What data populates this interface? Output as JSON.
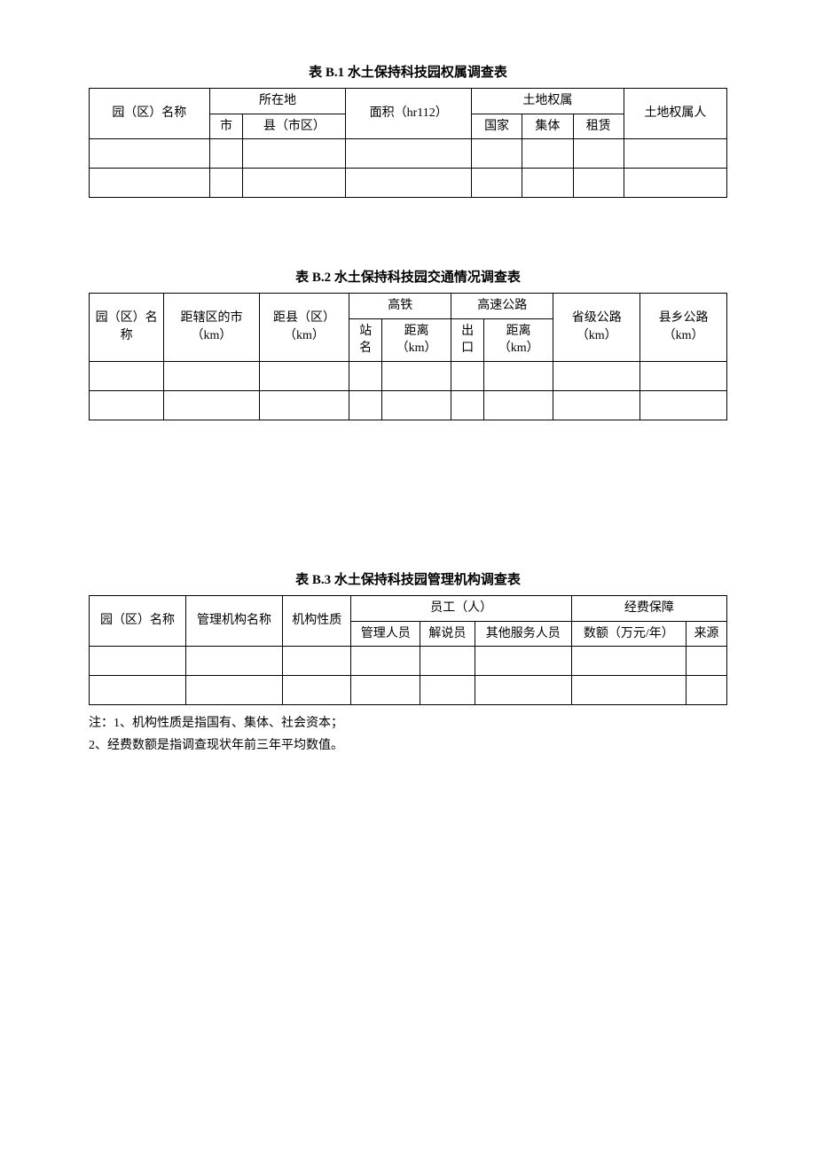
{
  "tableB1": {
    "title": "表 B.1 水土保持科技园权属调查表",
    "headers": {
      "parkName": "园（区）名称",
      "location": "所在地",
      "city": "市",
      "county": "县（市区）",
      "area": "面积（hr112）",
      "landOwnership": "土地权属",
      "national": "国家",
      "collective": "集体",
      "lease": "租赁",
      "owner": "土地权属人"
    },
    "rows": [
      [
        "",
        "",
        "",
        "",
        "",
        "",
        "",
        ""
      ],
      [
        "",
        "",
        "",
        "",
        "",
        "",
        "",
        ""
      ]
    ]
  },
  "tableB2": {
    "title": "表 B.2 水土保持科技园交通情况调查表",
    "headers": {
      "parkName": "园（区）名称",
      "distCity": "距辖区的市（km）",
      "distCounty": "距县（区）（km）",
      "highSpeedRail": "高铁",
      "stationName": "站名",
      "railDistance": "距离（km）",
      "expressway": "高速公路",
      "exit": "出口",
      "expresswayDistance": "距离（km）",
      "provincialRoad": "省级公路（km）",
      "countyRoad": "县乡公路（km）"
    },
    "rows": [
      [
        "",
        "",
        "",
        "",
        "",
        "",
        "",
        "",
        ""
      ],
      [
        "",
        "",
        "",
        "",
        "",
        "",
        "",
        "",
        ""
      ]
    ]
  },
  "tableB3": {
    "title": "表 B.3 水土保持科技园管理机构调查表",
    "headers": {
      "parkName": "园（区）名称",
      "orgName": "管理机构名称",
      "orgNature": "机构性质",
      "staff": "员工（人）",
      "managers": "管理人员",
      "guides": "解说员",
      "otherStaff": "其他服务人员",
      "funding": "经费保障",
      "amount": "数额（万元/年）",
      "source": "来源"
    },
    "rows": [
      [
        "",
        "",
        "",
        "",
        "",
        "",
        "",
        ""
      ],
      [
        "",
        "",
        "",
        "",
        "",
        "",
        "",
        ""
      ]
    ],
    "notes": {
      "note1": "注：1、机构性质是指国有、集体、社会资本；",
      "note2": "2、经费数额是指调查现状年前三年平均数值。"
    }
  },
  "style": {
    "borderColor": "#000000",
    "backgroundColor": "#ffffff",
    "textColor": "#000000",
    "fontSize": 14,
    "titleFontSize": 15
  }
}
